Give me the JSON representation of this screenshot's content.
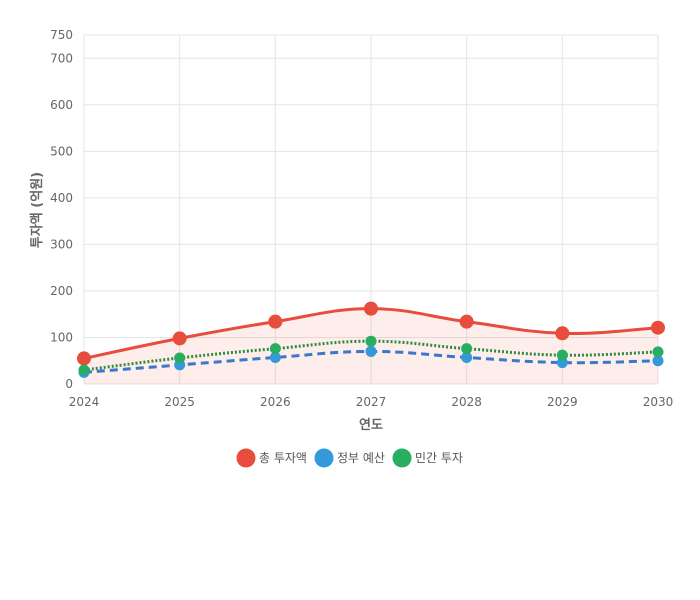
{
  "chart_data": {
    "type": "line",
    "x": [
      "2024",
      "2025",
      "2026",
      "2027",
      "2028",
      "2029",
      "2030"
    ],
    "xlabel": "연도",
    "ylabel": "투자액 (억원)",
    "ylim": [
      0,
      750
    ],
    "yticks": [
      "0",
      "100",
      "200",
      "300",
      "400",
      "500",
      "600",
      "700",
      "750"
    ],
    "grid": true,
    "legend_position": "bottom",
    "series": [
      {
        "name": "총 투자액",
        "values": [
          55,
          98,
          134,
          162,
          134,
          109,
          121
        ],
        "color": "#e74c3c",
        "style": "solid",
        "filled": true
      },
      {
        "name": "정부 예산",
        "values": [
          25,
          41,
          57,
          70,
          57,
          46,
          50
        ],
        "color": "#3498db",
        "style": "dashed",
        "filled": false
      },
      {
        "name": "민간 투자",
        "values": [
          30,
          56,
          76,
          92,
          76,
          62,
          69
        ],
        "color": "#27ae60",
        "style": "dotted",
        "filled": false
      }
    ]
  }
}
